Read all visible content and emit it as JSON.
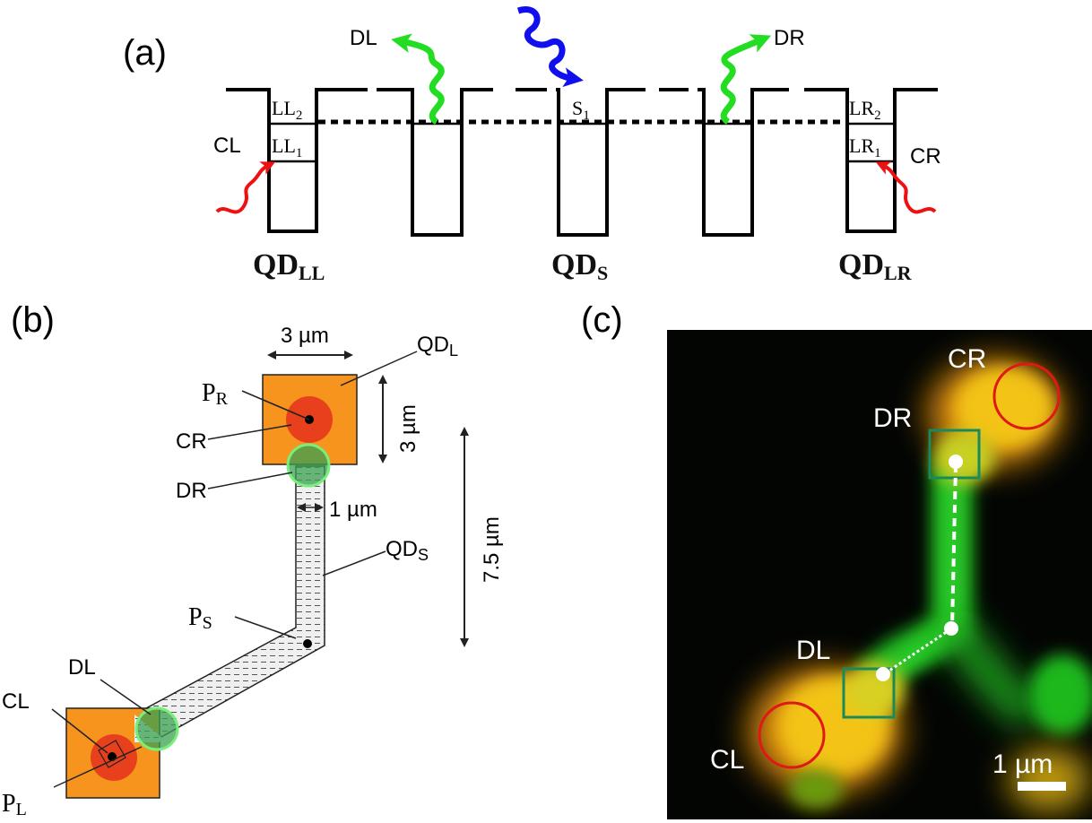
{
  "panel_a": {
    "label": "(a)",
    "arrows": {
      "dl": "DL",
      "dr": "DR",
      "cl": "CL",
      "cr": "CR"
    },
    "levels": {
      "ll2_base": "LL",
      "ll2_sub": "2",
      "ll1_base": "LL",
      "ll1_sub": "1",
      "s1_base": "S",
      "s1_sub": "1",
      "lr2_base": "LR",
      "lr2_sub": "2",
      "lr1_base": "LR",
      "lr1_sub": "1"
    },
    "dots": {
      "ll_base": "QD",
      "ll_sub": "LL",
      "s_base": "QD",
      "s_sub": "S",
      "lr_base": "QD",
      "lr_sub": "LR"
    },
    "colors": {
      "emission": "#22dd22",
      "excitation": "#1010ee",
      "pump": "#ee1111"
    }
  },
  "panel_b": {
    "label": "(b)",
    "dim_top": "3 µm",
    "dim_side": "3 µm",
    "dim_wire": "1 µm",
    "dim_length": "7.5 µm",
    "qdl_base": "QD",
    "qdl_sub": "L",
    "qds_base": "QD",
    "qds_sub": "S",
    "pr_base": "P",
    "pr_sub": "R",
    "ps_base": "P",
    "ps_sub": "S",
    "pl_base": "P",
    "pl_sub": "L",
    "cr": "CR",
    "dr": "DR",
    "dl": "DL",
    "cl": "CL",
    "colors": {
      "square": "#f7941d",
      "pump_spot": "#e8401c",
      "detect_spot": "#3aa050"
    }
  },
  "panel_c": {
    "label": "(c)",
    "cr": "CR",
    "dr": "DR",
    "dl": "DL",
    "cl": "CL",
    "scale": "1 µm",
    "colors": {
      "circle": "#e01818",
      "box": "#1a8a5a",
      "green": "#22c422",
      "yellow": "#f0c010"
    }
  }
}
